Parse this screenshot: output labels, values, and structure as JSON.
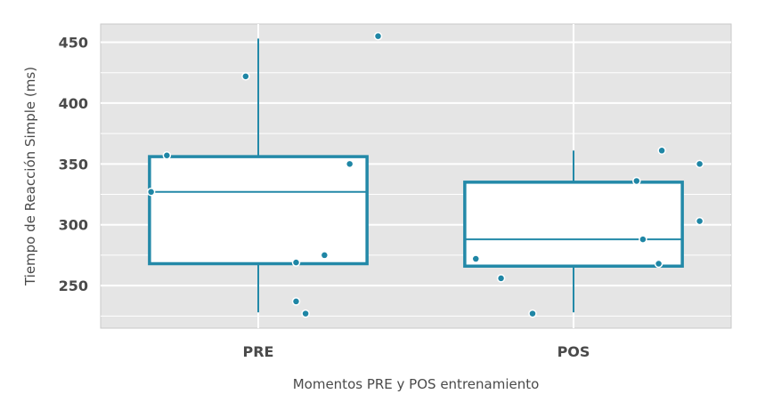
{
  "chart_data": {
    "type": "box",
    "xlabel": "Momentos PRE y POS entrenamiento",
    "ylabel": "Tiempo de Reacción Simple (ms)",
    "categories": [
      "PRE",
      "POS"
    ],
    "ylim": [
      215,
      465
    ],
    "yticks": [
      250,
      300,
      350,
      400,
      450
    ],
    "grid": true,
    "colors": {
      "box": "#2389a8",
      "point": "#1f86a5",
      "panel": "#e5e5e5",
      "grid": "#ffffff",
      "text": "#4a4a4a"
    },
    "boxes": [
      {
        "category": "PRE",
        "whisker_low": 228,
        "q1": 268,
        "median": 327,
        "q3": 356,
        "whisker_high": 453,
        "points": [
          {
            "offset": -0.34,
            "y": 327
          },
          {
            "offset": -0.29,
            "y": 357
          },
          {
            "offset": -0.04,
            "y": 422
          },
          {
            "offset": 0.29,
            "y": 350
          },
          {
            "offset": 0.21,
            "y": 275
          },
          {
            "offset": 0.12,
            "y": 269
          },
          {
            "offset": 0.12,
            "y": 237
          },
          {
            "offset": 0.15,
            "y": 227
          },
          {
            "offset": 0.38,
            "y": 455
          }
        ]
      },
      {
        "category": "POS",
        "whisker_low": 228,
        "q1": 266,
        "median": 288,
        "q3": 335,
        "whisker_high": 361,
        "points": [
          {
            "offset": -0.31,
            "y": 272
          },
          {
            "offset": -0.23,
            "y": 256
          },
          {
            "offset": -0.13,
            "y": 227
          },
          {
            "offset": 0.2,
            "y": 336
          },
          {
            "offset": 0.28,
            "y": 361
          },
          {
            "offset": 0.22,
            "y": 288
          },
          {
            "offset": 0.27,
            "y": 268
          },
          {
            "offset": 0.4,
            "y": 350
          },
          {
            "offset": 0.4,
            "y": 303
          }
        ]
      }
    ]
  }
}
